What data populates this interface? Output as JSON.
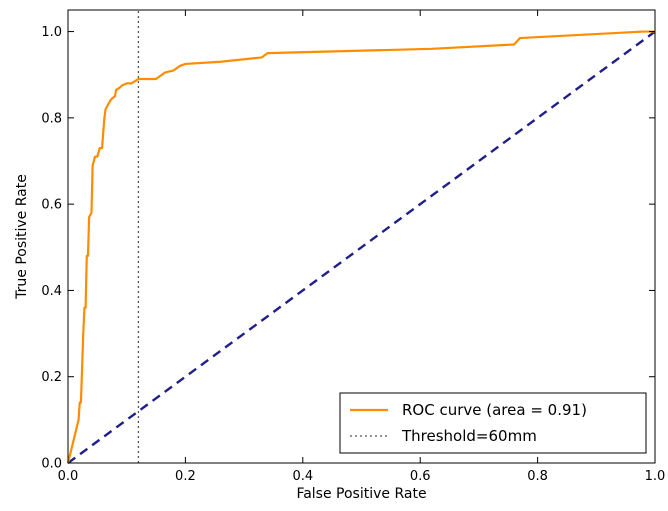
{
  "chart_data": {
    "type": "line",
    "title": "",
    "xlabel": "False Positive Rate",
    "ylabel": "True Positive Rate",
    "xlim": [
      0.0,
      1.0
    ],
    "ylim": [
      0.0,
      1.05
    ],
    "xticks": [
      "0.0",
      "0.2",
      "0.4",
      "0.6",
      "0.8",
      "1.0"
    ],
    "yticks": [
      "0.0",
      "0.2",
      "0.4",
      "0.6",
      "0.8",
      "1.0"
    ],
    "grid": false,
    "legend_position": "lower-right",
    "series": [
      {
        "name": "ROC curve (area = 0.91)",
        "color": "#ff8c00",
        "style": "solid",
        "x": [
          0.0,
          0.018,
          0.02,
          0.022,
          0.024,
          0.026,
          0.028,
          0.03,
          0.032,
          0.034,
          0.036,
          0.04,
          0.042,
          0.044,
          0.046,
          0.05,
          0.054,
          0.058,
          0.062,
          0.064,
          0.068,
          0.072,
          0.075,
          0.08,
          0.082,
          0.088,
          0.092,
          0.1,
          0.108,
          0.114,
          0.12,
          0.124,
          0.13,
          0.15,
          0.16,
          0.165,
          0.18,
          0.19,
          0.2,
          0.26,
          0.33,
          0.34,
          0.62,
          0.76,
          0.77,
          0.98,
          1.0
        ],
        "y": [
          0.0,
          0.1,
          0.14,
          0.14,
          0.22,
          0.3,
          0.36,
          0.36,
          0.48,
          0.48,
          0.57,
          0.58,
          0.69,
          0.7,
          0.71,
          0.71,
          0.73,
          0.73,
          0.8,
          0.82,
          0.83,
          0.84,
          0.845,
          0.85,
          0.865,
          0.87,
          0.875,
          0.88,
          0.88,
          0.885,
          0.89,
          0.89,
          0.89,
          0.89,
          0.9,
          0.905,
          0.91,
          0.92,
          0.925,
          0.93,
          0.94,
          0.95,
          0.96,
          0.97,
          0.985,
          1.0,
          1.0
        ]
      },
      {
        "name": "",
        "color": "#1f1f8b",
        "style": "dashed",
        "x": [
          0.0,
          1.0
        ],
        "y": [
          0.0,
          1.0
        ]
      },
      {
        "name": "Threshold=60mm",
        "color": "#555555",
        "style": "dotted",
        "x": [
          0.12,
          0.12
        ],
        "y": [
          0.0,
          1.05
        ]
      }
    ]
  }
}
